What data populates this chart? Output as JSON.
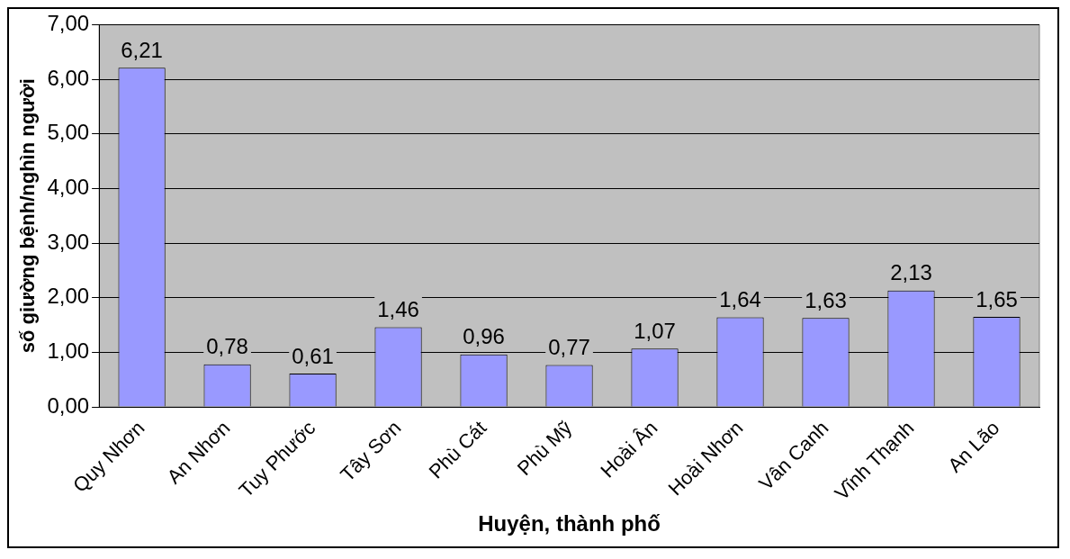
{
  "chart_data": {
    "type": "bar",
    "xlabel": "Huyện, thành phố",
    "ylabel": "số giường bệnh/nghìn người",
    "categories": [
      "Quy Nhơn",
      "An Nhơn",
      "Tuy Phước",
      "Tây Sơn",
      "Phù Cát",
      "Phù Mỹ",
      "Hoài Ân",
      "Hoài Nhơn",
      "Vân Canh",
      "Vĩnh Thạnh",
      "An Lão"
    ],
    "values": [
      6.21,
      0.78,
      0.61,
      1.46,
      0.96,
      0.77,
      1.07,
      1.64,
      1.63,
      2.13,
      1.65
    ],
    "value_labels": [
      "6,21",
      "0,78",
      "0,61",
      "1,46",
      "0,96",
      "0,77",
      "1,07",
      "1,64",
      "1,63",
      "2,13",
      "1,65"
    ],
    "color": "#9999ff",
    "ylim": [
      0,
      7
    ],
    "yticks": [
      {
        "value": 0,
        "label": "0,00"
      },
      {
        "value": 1,
        "label": "1,00"
      },
      {
        "value": 2,
        "label": "2,00"
      },
      {
        "value": 3,
        "label": "3,00"
      },
      {
        "value": 4,
        "label": "4,00"
      },
      {
        "value": 5,
        "label": "5,00"
      },
      {
        "value": 6,
        "label": "6,00"
      },
      {
        "value": 7,
        "label": "7,00"
      }
    ],
    "grid": "y",
    "legend": false
  }
}
